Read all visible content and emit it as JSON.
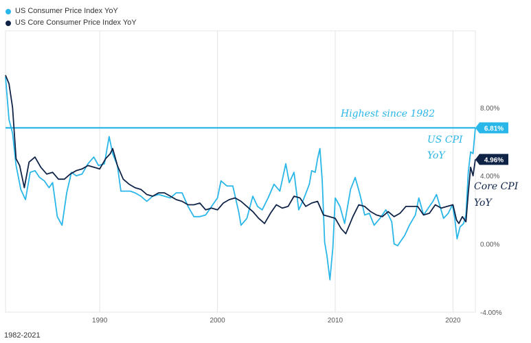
{
  "legend": {
    "items": [
      {
        "label": "US Consumer Price Index YoY",
        "color": "#29b6e8"
      },
      {
        "label": "US Core Consumer Price Index YoY",
        "color": "#0f2347"
      }
    ]
  },
  "footer": {
    "range": "1982-2021"
  },
  "annotations": {
    "highest": "Highest since 1982",
    "us_cpi_line1": "US CPI",
    "us_cpi_line2": "YoY",
    "core_cpi_line1": "Core CPI",
    "core_cpi_line2": "YoY"
  },
  "chart_data": {
    "type": "line",
    "xlim": [
      1982,
      2021.9
    ],
    "ylim": [
      -4,
      12.5
    ],
    "x_ticks": [
      {
        "value": 1990,
        "label": "1990"
      },
      {
        "value": 2000,
        "label": "2000"
      },
      {
        "value": 2010,
        "label": "2010"
      },
      {
        "value": 2020,
        "label": "2020"
      }
    ],
    "y_ticks": [
      {
        "value": 8,
        "label": "8.00%"
      },
      {
        "value": 4,
        "label": "4.00%"
      },
      {
        "value": 0,
        "label": "0.00%"
      },
      {
        "value": -4,
        "label": "-4.00%"
      }
    ],
    "grid": "vertical",
    "reference_line": {
      "value": 6.81,
      "color": "#29b6e8"
    },
    "end_labels": [
      {
        "series": 0,
        "value": 6.81,
        "label": "6.81%"
      },
      {
        "series": 1,
        "value": 4.96,
        "label": "4.96%"
      }
    ],
    "series": [
      {
        "name": "US Consumer Price Index YoY",
        "color": "#29b6e8",
        "points": [
          [
            1982.0,
            9.8
          ],
          [
            1982.3,
            7.3
          ],
          [
            1982.6,
            6.5
          ],
          [
            1982.9,
            4.6
          ],
          [
            1983.3,
            3.2
          ],
          [
            1983.7,
            2.6
          ],
          [
            1984.1,
            4.2
          ],
          [
            1984.5,
            4.3
          ],
          [
            1984.9,
            3.9
          ],
          [
            1985.3,
            3.7
          ],
          [
            1985.7,
            3.3
          ],
          [
            1986.0,
            3.6
          ],
          [
            1986.4,
            1.6
          ],
          [
            1986.8,
            1.1
          ],
          [
            1987.2,
            3.0
          ],
          [
            1987.6,
            4.2
          ],
          [
            1988.0,
            4.0
          ],
          [
            1988.5,
            4.1
          ],
          [
            1989.0,
            4.7
          ],
          [
            1989.5,
            5.1
          ],
          [
            1989.9,
            4.6
          ],
          [
            1990.4,
            4.7
          ],
          [
            1990.8,
            6.3
          ],
          [
            1991.1,
            5.3
          ],
          [
            1991.5,
            4.6
          ],
          [
            1991.8,
            3.1
          ],
          [
            1992.2,
            3.1
          ],
          [
            1992.6,
            3.1
          ],
          [
            1993.0,
            3.0
          ],
          [
            1993.5,
            2.8
          ],
          [
            1994.0,
            2.5
          ],
          [
            1994.5,
            2.8
          ],
          [
            1995.0,
            2.9
          ],
          [
            1995.5,
            2.8
          ],
          [
            1996.0,
            2.7
          ],
          [
            1996.5,
            3.0
          ],
          [
            1997.0,
            3.0
          ],
          [
            1997.5,
            2.2
          ],
          [
            1998.0,
            1.6
          ],
          [
            1998.5,
            1.6
          ],
          [
            1999.0,
            1.7
          ],
          [
            1999.5,
            2.2
          ],
          [
            2000.0,
            2.7
          ],
          [
            2000.3,
            3.7
          ],
          [
            2000.8,
            3.4
          ],
          [
            2001.3,
            3.4
          ],
          [
            2001.8,
            1.9
          ],
          [
            2002.0,
            1.1
          ],
          [
            2002.5,
            1.5
          ],
          [
            2003.0,
            2.8
          ],
          [
            2003.4,
            2.2
          ],
          [
            2003.8,
            2.0
          ],
          [
            2004.3,
            2.7
          ],
          [
            2004.8,
            3.5
          ],
          [
            2005.3,
            3.1
          ],
          [
            2005.8,
            4.7
          ],
          [
            2006.1,
            3.6
          ],
          [
            2006.5,
            4.2
          ],
          [
            2006.9,
            2.0
          ],
          [
            2007.3,
            2.6
          ],
          [
            2007.8,
            3.5
          ],
          [
            2008.0,
            4.3
          ],
          [
            2008.3,
            4.2
          ],
          [
            2008.5,
            5.0
          ],
          [
            2008.7,
            5.6
          ],
          [
            2008.9,
            3.7
          ],
          [
            2009.1,
            0.1
          ],
          [
            2009.3,
            -0.7
          ],
          [
            2009.55,
            -2.1
          ],
          [
            2009.8,
            -0.2
          ],
          [
            2010.0,
            2.7
          ],
          [
            2010.4,
            2.2
          ],
          [
            2010.8,
            1.2
          ],
          [
            2011.3,
            3.2
          ],
          [
            2011.7,
            3.9
          ],
          [
            2012.1,
            2.9
          ],
          [
            2012.5,
            1.7
          ],
          [
            2012.9,
            1.8
          ],
          [
            2013.3,
            1.1
          ],
          [
            2013.8,
            1.5
          ],
          [
            2014.3,
            2.0
          ],
          [
            2014.8,
            1.3
          ],
          [
            2015.0,
            0.0
          ],
          [
            2015.3,
            -0.1
          ],
          [
            2015.6,
            0.2
          ],
          [
            2015.9,
            0.5
          ],
          [
            2016.3,
            1.1
          ],
          [
            2016.8,
            1.7
          ],
          [
            2017.1,
            2.7
          ],
          [
            2017.5,
            1.7
          ],
          [
            2017.9,
            2.1
          ],
          [
            2018.3,
            2.5
          ],
          [
            2018.6,
            2.9
          ],
          [
            2018.9,
            2.2
          ],
          [
            2019.2,
            1.5
          ],
          [
            2019.6,
            1.8
          ],
          [
            2019.95,
            2.3
          ],
          [
            2020.15,
            1.5
          ],
          [
            2020.35,
            0.3
          ],
          [
            2020.6,
            1.0
          ],
          [
            2020.9,
            1.2
          ],
          [
            2021.1,
            1.7
          ],
          [
            2021.3,
            4.2
          ],
          [
            2021.5,
            5.4
          ],
          [
            2021.7,
            5.3
          ],
          [
            2021.9,
            6.81
          ]
        ]
      },
      {
        "name": "US Core Consumer Price Index YoY",
        "color": "#0f2347",
        "points": [
          [
            1982.0,
            9.9
          ],
          [
            1982.3,
            9.4
          ],
          [
            1982.6,
            8.0
          ],
          [
            1982.9,
            5.0
          ],
          [
            1983.2,
            4.6
          ],
          [
            1983.6,
            3.3
          ],
          [
            1984.0,
            4.8
          ],
          [
            1984.5,
            5.1
          ],
          [
            1985.0,
            4.5
          ],
          [
            1985.5,
            4.1
          ],
          [
            1986.0,
            4.2
          ],
          [
            1986.5,
            3.8
          ],
          [
            1987.0,
            3.8
          ],
          [
            1987.5,
            4.1
          ],
          [
            1988.0,
            4.3
          ],
          [
            1988.5,
            4.4
          ],
          [
            1989.0,
            4.6
          ],
          [
            1989.5,
            4.5
          ],
          [
            1990.0,
            4.4
          ],
          [
            1990.5,
            5.0
          ],
          [
            1990.9,
            5.3
          ],
          [
            1991.1,
            5.6
          ],
          [
            1991.5,
            4.6
          ],
          [
            1992.0,
            3.8
          ],
          [
            1992.5,
            3.5
          ],
          [
            1993.0,
            3.3
          ],
          [
            1993.5,
            3.2
          ],
          [
            1994.0,
            2.9
          ],
          [
            1994.5,
            2.8
          ],
          [
            1995.0,
            3.0
          ],
          [
            1995.5,
            3.0
          ],
          [
            1996.0,
            2.8
          ],
          [
            1996.5,
            2.6
          ],
          [
            1997.0,
            2.5
          ],
          [
            1997.5,
            2.3
          ],
          [
            1998.0,
            2.3
          ],
          [
            1998.5,
            2.4
          ],
          [
            1999.0,
            2.0
          ],
          [
            1999.5,
            2.1
          ],
          [
            2000.0,
            2.0
          ],
          [
            2000.5,
            2.4
          ],
          [
            2001.0,
            2.6
          ],
          [
            2001.5,
            2.7
          ],
          [
            2002.0,
            2.5
          ],
          [
            2002.5,
            2.2
          ],
          [
            2003.0,
            1.9
          ],
          [
            2003.5,
            1.5
          ],
          [
            2004.0,
            1.2
          ],
          [
            2004.5,
            1.8
          ],
          [
            2005.0,
            2.3
          ],
          [
            2005.5,
            2.1
          ],
          [
            2006.0,
            2.2
          ],
          [
            2006.5,
            2.8
          ],
          [
            2007.0,
            2.7
          ],
          [
            2007.5,
            2.2
          ],
          [
            2008.0,
            2.4
          ],
          [
            2008.5,
            2.5
          ],
          [
            2009.0,
            1.7
          ],
          [
            2009.5,
            1.6
          ],
          [
            2010.0,
            1.5
          ],
          [
            2010.5,
            0.9
          ],
          [
            2010.9,
            0.6
          ],
          [
            2011.5,
            1.6
          ],
          [
            2012.0,
            2.3
          ],
          [
            2012.5,
            2.2
          ],
          [
            2013.0,
            1.9
          ],
          [
            2013.5,
            1.7
          ],
          [
            2014.0,
            1.6
          ],
          [
            2014.5,
            1.9
          ],
          [
            2015.0,
            1.6
          ],
          [
            2015.5,
            1.8
          ],
          [
            2016.0,
            2.2
          ],
          [
            2016.5,
            2.2
          ],
          [
            2017.0,
            2.2
          ],
          [
            2017.5,
            1.7
          ],
          [
            2018.0,
            1.8
          ],
          [
            2018.5,
            2.3
          ],
          [
            2019.0,
            2.1
          ],
          [
            2019.5,
            2.2
          ],
          [
            2020.0,
            2.3
          ],
          [
            2020.3,
            1.4
          ],
          [
            2020.5,
            1.2
          ],
          [
            2020.8,
            1.6
          ],
          [
            2021.1,
            1.3
          ],
          [
            2021.3,
            3.0
          ],
          [
            2021.5,
            4.5
          ],
          [
            2021.7,
            4.0
          ],
          [
            2021.9,
            4.96
          ]
        ]
      }
    ]
  }
}
